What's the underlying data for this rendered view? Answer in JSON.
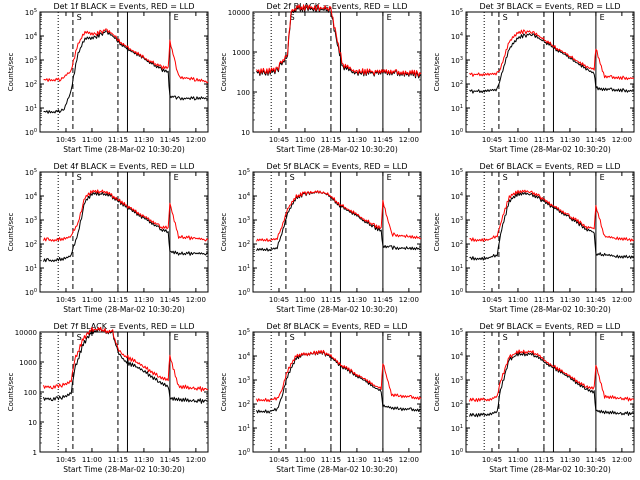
{
  "figure": {
    "background": "#ffffff",
    "axis_color": "#000000",
    "events_color": "#000000",
    "lld_color": "#ff0000"
  },
  "chart_data": [
    {
      "type": "line",
      "title": "Det 1f BLACK = Events, RED = LLD",
      "ylabel": "Counts/sec",
      "xlabel": "Start Time (28-Mar-02 10:30:20)",
      "yscale": "log",
      "ylim": [
        1,
        100000
      ],
      "ytick_labels": [
        "10^0",
        "10^1",
        "10^2",
        "10^3",
        "10^4",
        "10^5"
      ],
      "xtick_labels": [
        "10:45",
        "11:00",
        "11:15",
        "11:30",
        "11:45",
        "12:00"
      ],
      "markers": [
        "S",
        "E"
      ],
      "series": [
        {
          "name": "Events",
          "x": [
            "10:32",
            "10:40",
            "10:42",
            "10:44",
            "10:48",
            "10:52",
            "10:56",
            "11:02",
            "11:08",
            "11:12",
            "11:15",
            "11:20",
            "11:30",
            "11:40",
            "11:44",
            "11:45",
            "11:50",
            "12:00",
            "12:07"
          ],
          "values": [
            7,
            7,
            8,
            9,
            60,
            2000,
            8000,
            9000,
            15000,
            10000,
            6000,
            3000,
            1200,
            400,
            300,
            30,
            25,
            25,
            25
          ]
        },
        {
          "name": "LLD",
          "x": [
            "10:32",
            "10:40",
            "10:42",
            "10:44",
            "10:48",
            "10:52",
            "10:56",
            "11:02",
            "11:08",
            "11:12",
            "11:15",
            "11:20",
            "11:30",
            "11:40",
            "11:44",
            "11:45",
            "11:50",
            "12:00",
            "12:07"
          ],
          "values": [
            150,
            150,
            160,
            200,
            400,
            5000,
            15000,
            12000,
            18000,
            12000,
            7000,
            3500,
            1300,
            500,
            450,
            6000,
            200,
            150,
            120
          ]
        }
      ]
    },
    {
      "type": "line",
      "title": "Det 2f BLACK = Events, RED = LLD",
      "ylabel": "Counts/sec",
      "xlabel": "Start Time (28-Mar-02 10:30:20)",
      "yscale": "log",
      "ylim": [
        10,
        10000
      ],
      "ytick_labels": [
        "10",
        "100",
        "1000",
        "10000"
      ],
      "xtick_labels": [
        "10:45",
        "11:00",
        "11:15",
        "11:30",
        "11:45",
        "12:00"
      ],
      "markers": [
        "S",
        "E"
      ],
      "series": [
        {
          "name": "Events",
          "x": [
            "10:32",
            "10:44",
            "10:50",
            "10:52",
            "10:56",
            "11:05",
            "11:15",
            "11:18",
            "11:22",
            "11:30",
            "11:40",
            "11:45",
            "12:00",
            "12:07"
          ],
          "values": [
            300,
            320,
            900,
            10000,
            12000,
            12000,
            11000,
            2000,
            400,
            300,
            300,
            300,
            280,
            250
          ]
        },
        {
          "name": "LLD",
          "x": [
            "10:32",
            "10:44",
            "10:50",
            "10:52",
            "10:56",
            "11:05",
            "11:15",
            "11:18",
            "11:22",
            "11:30",
            "11:40",
            "11:45",
            "12:00",
            "12:07"
          ],
          "values": [
            330,
            350,
            1000,
            11000,
            13000,
            13000,
            12000,
            2500,
            450,
            330,
            320,
            320,
            300,
            280
          ]
        }
      ]
    },
    {
      "type": "line",
      "title": "Det 3f BLACK = Events, RED = LLD",
      "ylabel": "Counts/sec",
      "xlabel": "Start Time (28-Mar-02 10:30:20)",
      "yscale": "log",
      "ylim": [
        1,
        100000
      ],
      "ytick_labels": [
        "10^0",
        "10^1",
        "10^2",
        "10^3",
        "10^4",
        "10^5"
      ],
      "xtick_labels": [
        "10:45",
        "11:00",
        "11:15",
        "11:30",
        "11:45",
        "12:00"
      ],
      "markers": [
        "S",
        "E"
      ],
      "series": [
        {
          "name": "Events",
          "x": [
            "10:32",
            "10:40",
            "10:44",
            "10:48",
            "10:50",
            "10:55",
            "11:00",
            "11:08",
            "11:12",
            "11:20",
            "11:30",
            "11:40",
            "11:44",
            "11:45",
            "11:50",
            "12:00",
            "12:07"
          ],
          "values": [
            50,
            50,
            55,
            60,
            200,
            3000,
            9000,
            12000,
            8000,
            3500,
            1200,
            400,
            300,
            70,
            60,
            55,
            50
          ]
        },
        {
          "name": "LLD",
          "x": [
            "10:32",
            "10:40",
            "10:44",
            "10:48",
            "10:50",
            "10:55",
            "11:00",
            "11:08",
            "11:12",
            "11:20",
            "11:30",
            "11:40",
            "11:44",
            "11:45",
            "11:50",
            "12:00",
            "12:07"
          ],
          "values": [
            250,
            250,
            260,
            280,
            500,
            6000,
            15000,
            15000,
            10000,
            4000,
            1400,
            500,
            450,
            3000,
            200,
            180,
            170
          ]
        }
      ]
    },
    {
      "type": "line",
      "title": "Det 4f BLACK = Events, RED = LLD",
      "ylabel": "Counts/sec",
      "xlabel": "Start Time (28-Mar-02 10:30:20)",
      "yscale": "log",
      "ylim": [
        1,
        100000
      ],
      "ytick_labels": [
        "10^0",
        "10^1",
        "10^2",
        "10^3",
        "10^4",
        "10^5"
      ],
      "xtick_labels": [
        "10:45",
        "11:00",
        "11:15",
        "11:30",
        "11:45",
        "12:00"
      ],
      "markers": [
        "S",
        "E"
      ],
      "series": [
        {
          "name": "Events",
          "x": [
            "10:32",
            "10:40",
            "10:44",
            "10:48",
            "10:52",
            "10:56",
            "11:00",
            "11:08",
            "11:12",
            "11:20",
            "11:30",
            "11:40",
            "11:44",
            "11:45",
            "11:50",
            "12:00",
            "12:07"
          ],
          "values": [
            20,
            22,
            25,
            35,
            300,
            6000,
            12000,
            12000,
            9000,
            3500,
            1200,
            400,
            300,
            50,
            40,
            40,
            40
          ]
        },
        {
          "name": "LLD",
          "x": [
            "10:32",
            "10:40",
            "10:44",
            "10:48",
            "10:52",
            "10:56",
            "11:00",
            "11:08",
            "11:12",
            "11:20",
            "11:30",
            "11:40",
            "11:44",
            "11:45",
            "11:50",
            "12:00",
            "12:07"
          ],
          "values": [
            150,
            150,
            170,
            220,
            800,
            9000,
            15000,
            15000,
            10000,
            4000,
            1400,
            500,
            450,
            5000,
            200,
            170,
            150
          ]
        }
      ]
    },
    {
      "type": "line",
      "title": "Det 5f BLACK = Events, RED = LLD",
      "ylabel": "Counts/sec",
      "xlabel": "Start Time (28-Mar-02 10:30:20)",
      "yscale": "log",
      "ylim": [
        1,
        100000
      ],
      "ytick_labels": [
        "10^0",
        "10^1",
        "10^2",
        "10^3",
        "10^4",
        "10^5"
      ],
      "xtick_labels": [
        "10:45",
        "11:00",
        "11:15",
        "11:30",
        "11:45",
        "12:00"
      ],
      "markers": [
        "S",
        "E"
      ],
      "series": [
        {
          "name": "Events",
          "x": [
            "10:32",
            "10:40",
            "10:44",
            "10:46",
            "10:50",
            "10:55",
            "11:00",
            "11:10",
            "11:15",
            "11:20",
            "11:30",
            "11:40",
            "11:44",
            "11:45",
            "11:50",
            "12:00",
            "12:07"
          ],
          "values": [
            60,
            60,
            70,
            200,
            2000,
            9000,
            12000,
            15000,
            9000,
            4000,
            1500,
            500,
            350,
            80,
            70,
            65,
            60
          ]
        },
        {
          "name": "LLD",
          "x": [
            "10:32",
            "10:40",
            "10:44",
            "10:46",
            "10:50",
            "10:55",
            "11:00",
            "11:10",
            "11:15",
            "11:20",
            "11:30",
            "11:40",
            "11:44",
            "11:45",
            "11:50",
            "12:00",
            "12:07"
          ],
          "values": [
            150,
            150,
            170,
            400,
            3000,
            10000,
            13000,
            15000,
            10000,
            4500,
            1700,
            600,
            450,
            6000,
            250,
            200,
            170
          ]
        }
      ]
    },
    {
      "type": "line",
      "title": "Det 6f BLACK = Events, RED = LLD",
      "ylabel": "Counts/sec",
      "xlabel": "Start Time (28-Mar-02 10:30:20)",
      "yscale": "log",
      "ylim": [
        1,
        100000
      ],
      "ytick_labels": [
        "10^0",
        "10^1",
        "10^2",
        "10^3",
        "10^4",
        "10^5"
      ],
      "xtick_labels": [
        "10:45",
        "11:00",
        "11:15",
        "11:30",
        "11:45",
        "12:00"
      ],
      "markers": [
        "S",
        "E"
      ],
      "series": [
        {
          "name": "Events",
          "x": [
            "10:32",
            "10:40",
            "10:44",
            "10:48",
            "10:50",
            "10:55",
            "11:00",
            "11:08",
            "11:12",
            "11:20",
            "11:30",
            "11:40",
            "11:44",
            "11:45",
            "11:50",
            "12:00",
            "12:07"
          ],
          "values": [
            25,
            25,
            28,
            35,
            300,
            6000,
            12000,
            12000,
            8000,
            3500,
            1200,
            400,
            300,
            40,
            35,
            30,
            30
          ]
        },
        {
          "name": "LLD",
          "x": [
            "10:32",
            "10:40",
            "10:44",
            "10:48",
            "10:50",
            "10:55",
            "11:00",
            "11:08",
            "11:12",
            "11:20",
            "11:30",
            "11:40",
            "11:44",
            "11:45",
            "11:50",
            "12:00",
            "12:07"
          ],
          "values": [
            150,
            150,
            160,
            220,
            800,
            9000,
            15000,
            15000,
            10000,
            4000,
            1400,
            500,
            450,
            4000,
            200,
            170,
            150
          ]
        }
      ]
    },
    {
      "type": "line",
      "title": "Det 7f BLACK = Events, RED = LLD",
      "ylabel": "Counts/sec",
      "xlabel": "Start Time (28-Mar-02 10:30:20)",
      "yscale": "log",
      "ylim": [
        1,
        10000
      ],
      "ytick_labels": [
        "1",
        "10",
        "100",
        "1000",
        "10000"
      ],
      "xtick_labels": [
        "10:45",
        "11:00",
        "11:15",
        "11:30",
        "11:45",
        "12:00"
      ],
      "markers": [
        "S",
        "E"
      ],
      "series": [
        {
          "name": "Events",
          "x": [
            "10:32",
            "10:40",
            "10:44",
            "10:48",
            "10:50",
            "10:55",
            "11:00",
            "11:05",
            "11:12",
            "11:15",
            "11:20",
            "11:30",
            "11:40",
            "11:44",
            "11:45",
            "11:50",
            "12:00",
            "12:07"
          ],
          "values": [
            60,
            60,
            70,
            100,
            600,
            4000,
            10000,
            12000,
            9000,
            2000,
            1000,
            500,
            200,
            150,
            60,
            55,
            50,
            50
          ]
        },
        {
          "name": "LLD",
          "x": [
            "10:32",
            "10:40",
            "10:44",
            "10:48",
            "10:50",
            "10:55",
            "11:00",
            "11:05",
            "11:12",
            "11:15",
            "11:20",
            "11:30",
            "11:40",
            "11:44",
            "11:45",
            "11:50",
            "12:00",
            "12:07"
          ],
          "values": [
            150,
            150,
            180,
            250,
            1200,
            6000,
            12000,
            12000,
            10000,
            2500,
            1500,
            700,
            300,
            250,
            1500,
            150,
            130,
            120
          ]
        }
      ]
    },
    {
      "type": "line",
      "title": "Det 8f BLACK = Events, RED = LLD",
      "ylabel": "Counts/sec",
      "xlabel": "Start Time (28-Mar-02 10:30:20)",
      "yscale": "log",
      "ylim": [
        1,
        100000
      ],
      "ytick_labels": [
        "10^0",
        "10^1",
        "10^2",
        "10^3",
        "10^4",
        "10^5"
      ],
      "xtick_labels": [
        "10:45",
        "11:00",
        "11:15",
        "11:30",
        "11:45",
        "12:00"
      ],
      "markers": [
        "S",
        "E"
      ],
      "series": [
        {
          "name": "Events",
          "x": [
            "10:32",
            "10:40",
            "10:44",
            "10:46",
            "10:50",
            "10:55",
            "11:00",
            "11:10",
            "11:15",
            "11:20",
            "11:30",
            "11:40",
            "11:44",
            "11:45",
            "11:50",
            "12:00",
            "12:07"
          ],
          "values": [
            50,
            50,
            60,
            150,
            1500,
            8000,
            12000,
            14000,
            9000,
            4000,
            1500,
            500,
            350,
            80,
            70,
            60,
            55
          ]
        },
        {
          "name": "LLD",
          "x": [
            "10:32",
            "10:40",
            "10:44",
            "10:46",
            "10:50",
            "10:55",
            "11:00",
            "11:10",
            "11:15",
            "11:20",
            "11:30",
            "11:40",
            "11:44",
            "11:45",
            "11:50",
            "12:00",
            "12:07"
          ],
          "values": [
            150,
            150,
            170,
            300,
            2500,
            10000,
            12000,
            15000,
            10000,
            4500,
            1700,
            600,
            450,
            5000,
            250,
            200,
            170
          ]
        }
      ]
    },
    {
      "type": "line",
      "title": "Det 9f BLACK = Events, RED = LLD",
      "ylabel": "Counts/sec",
      "xlabel": "Start Time (28-Mar-02 10:30:20)",
      "yscale": "log",
      "ylim": [
        1,
        100000
      ],
      "ytick_labels": [
        "10^0",
        "10^1",
        "10^2",
        "10^3",
        "10^4",
        "10^5"
      ],
      "xtick_labels": [
        "10:45",
        "11:00",
        "11:15",
        "11:30",
        "11:45",
        "12:00"
      ],
      "markers": [
        "S",
        "E"
      ],
      "series": [
        {
          "name": "Events",
          "x": [
            "10:32",
            "10:40",
            "10:44",
            "10:48",
            "10:50",
            "10:55",
            "11:00",
            "11:08",
            "11:12",
            "11:20",
            "11:30",
            "11:40",
            "11:44",
            "11:45",
            "11:50",
            "12:00",
            "12:07"
          ],
          "values": [
            35,
            35,
            40,
            50,
            400,
            7000,
            12000,
            12000,
            8000,
            3500,
            1200,
            400,
            300,
            50,
            45,
            40,
            40
          ]
        },
        {
          "name": "LLD",
          "x": [
            "10:32",
            "10:40",
            "10:44",
            "10:48",
            "10:50",
            "10:55",
            "11:00",
            "11:08",
            "11:12",
            "11:20",
            "11:30",
            "11:40",
            "11:44",
            "11:45",
            "11:50",
            "12:00",
            "12:07"
          ],
          "values": [
            150,
            150,
            160,
            220,
            900,
            9000,
            15000,
            15000,
            10000,
            4000,
            1400,
            500,
            450,
            4000,
            200,
            170,
            150
          ]
        }
      ]
    }
  ]
}
